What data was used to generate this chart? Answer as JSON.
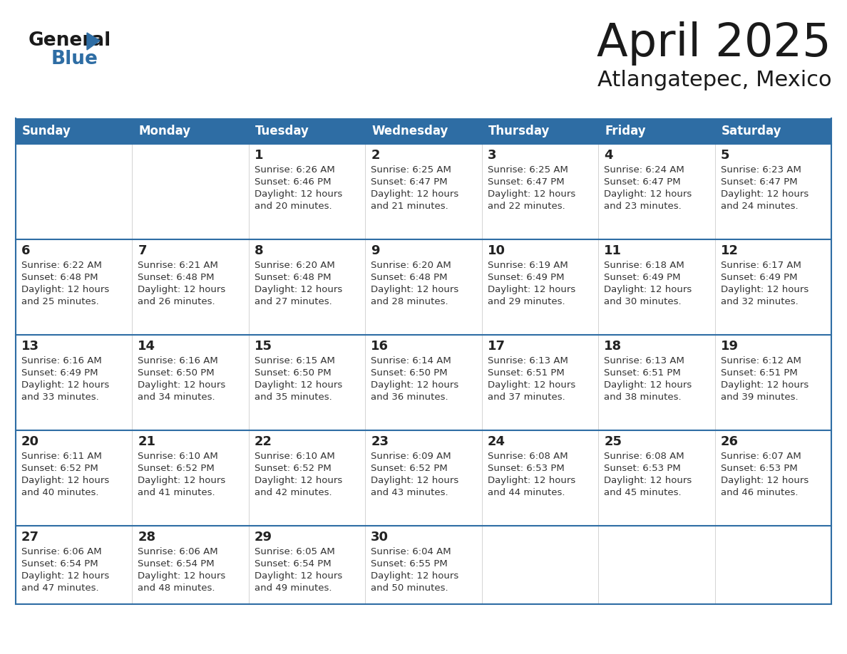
{
  "title": "April 2025",
  "subtitle": "Atlangatepec, Mexico",
  "days_of_week": [
    "Sunday",
    "Monday",
    "Tuesday",
    "Wednesday",
    "Thursday",
    "Friday",
    "Saturday"
  ],
  "header_bg": "#2e6da4",
  "header_text": "#ffffff",
  "cell_bg": "#ffffff",
  "cell_border_color": "#2e6da4",
  "grid_line_color": "#cccccc",
  "day_number_color": "#222222",
  "content_color": "#333333",
  "title_color": "#1a1a1a",
  "subtitle_color": "#1a1a1a",
  "logo_color_general": "#1a1a1a",
  "logo_color_blue": "#2e6da4",
  "calendar_data": [
    [
      {
        "day": "",
        "sunrise": "",
        "sunset": "",
        "daylight_min": null
      },
      {
        "day": "",
        "sunrise": "",
        "sunset": "",
        "daylight_min": null
      },
      {
        "day": "1",
        "sunrise": "6:26 AM",
        "sunset": "6:46 PM",
        "daylight_min": 20
      },
      {
        "day": "2",
        "sunrise": "6:25 AM",
        "sunset": "6:47 PM",
        "daylight_min": 21
      },
      {
        "day": "3",
        "sunrise": "6:25 AM",
        "sunset": "6:47 PM",
        "daylight_min": 22
      },
      {
        "day": "4",
        "sunrise": "6:24 AM",
        "sunset": "6:47 PM",
        "daylight_min": 23
      },
      {
        "day": "5",
        "sunrise": "6:23 AM",
        "sunset": "6:47 PM",
        "daylight_min": 24
      }
    ],
    [
      {
        "day": "6",
        "sunrise": "6:22 AM",
        "sunset": "6:48 PM",
        "daylight_min": 25
      },
      {
        "day": "7",
        "sunrise": "6:21 AM",
        "sunset": "6:48 PM",
        "daylight_min": 26
      },
      {
        "day": "8",
        "sunrise": "6:20 AM",
        "sunset": "6:48 PM",
        "daylight_min": 27
      },
      {
        "day": "9",
        "sunrise": "6:20 AM",
        "sunset": "6:48 PM",
        "daylight_min": 28
      },
      {
        "day": "10",
        "sunrise": "6:19 AM",
        "sunset": "6:49 PM",
        "daylight_min": 29
      },
      {
        "day": "11",
        "sunrise": "6:18 AM",
        "sunset": "6:49 PM",
        "daylight_min": 30
      },
      {
        "day": "12",
        "sunrise": "6:17 AM",
        "sunset": "6:49 PM",
        "daylight_min": 32
      }
    ],
    [
      {
        "day": "13",
        "sunrise": "6:16 AM",
        "sunset": "6:49 PM",
        "daylight_min": 33
      },
      {
        "day": "14",
        "sunrise": "6:16 AM",
        "sunset": "6:50 PM",
        "daylight_min": 34
      },
      {
        "day": "15",
        "sunrise": "6:15 AM",
        "sunset": "6:50 PM",
        "daylight_min": 35
      },
      {
        "day": "16",
        "sunrise": "6:14 AM",
        "sunset": "6:50 PM",
        "daylight_min": 36
      },
      {
        "day": "17",
        "sunrise": "6:13 AM",
        "sunset": "6:51 PM",
        "daylight_min": 37
      },
      {
        "day": "18",
        "sunrise": "6:13 AM",
        "sunset": "6:51 PM",
        "daylight_min": 38
      },
      {
        "day": "19",
        "sunrise": "6:12 AM",
        "sunset": "6:51 PM",
        "daylight_min": 39
      }
    ],
    [
      {
        "day": "20",
        "sunrise": "6:11 AM",
        "sunset": "6:52 PM",
        "daylight_min": 40
      },
      {
        "day": "21",
        "sunrise": "6:10 AM",
        "sunset": "6:52 PM",
        "daylight_min": 41
      },
      {
        "day": "22",
        "sunrise": "6:10 AM",
        "sunset": "6:52 PM",
        "daylight_min": 42
      },
      {
        "day": "23",
        "sunrise": "6:09 AM",
        "sunset": "6:52 PM",
        "daylight_min": 43
      },
      {
        "day": "24",
        "sunrise": "6:08 AM",
        "sunset": "6:53 PM",
        "daylight_min": 44
      },
      {
        "day": "25",
        "sunrise": "6:08 AM",
        "sunset": "6:53 PM",
        "daylight_min": 45
      },
      {
        "day": "26",
        "sunrise": "6:07 AM",
        "sunset": "6:53 PM",
        "daylight_min": 46
      }
    ],
    [
      {
        "day": "27",
        "sunrise": "6:06 AM",
        "sunset": "6:54 PM",
        "daylight_min": 47
      },
      {
        "day": "28",
        "sunrise": "6:06 AM",
        "sunset": "6:54 PM",
        "daylight_min": 48
      },
      {
        "day": "29",
        "sunrise": "6:05 AM",
        "sunset": "6:54 PM",
        "daylight_min": 49
      },
      {
        "day": "30",
        "sunrise": "6:04 AM",
        "sunset": "6:55 PM",
        "daylight_min": 50
      },
      {
        "day": "",
        "sunrise": "",
        "sunset": "",
        "daylight_min": null
      },
      {
        "day": "",
        "sunrise": "",
        "sunset": "",
        "daylight_min": null
      },
      {
        "day": "",
        "sunrise": "",
        "sunset": "",
        "daylight_min": null
      }
    ]
  ]
}
